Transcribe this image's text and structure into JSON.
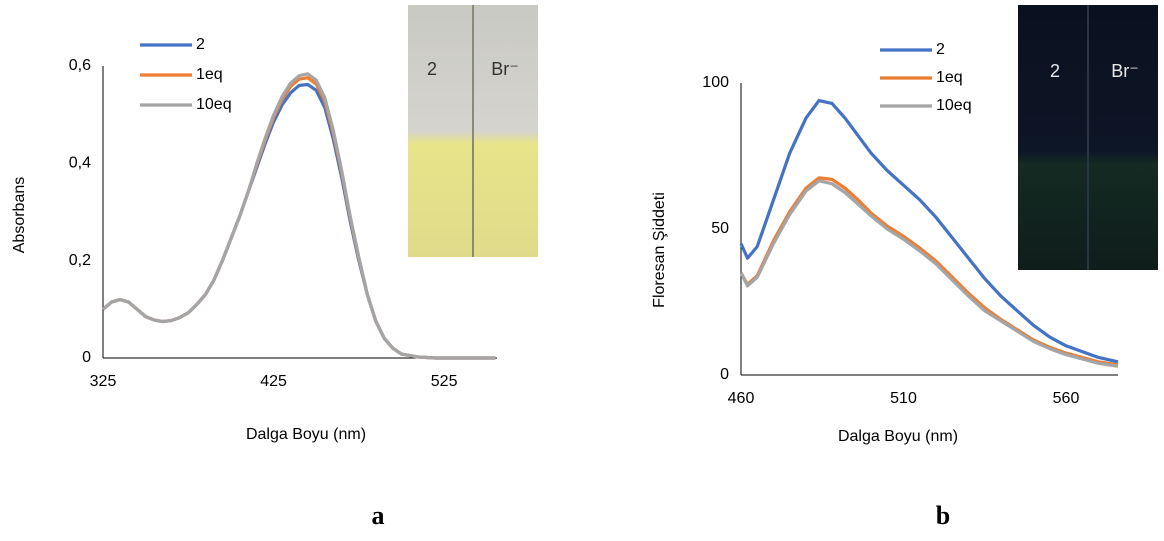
{
  "chart_data": [
    {
      "type": "line",
      "panel_label": "a",
      "x_label": "Dalga Boyu (nm)",
      "y_label": "Absorbans",
      "inset_labels": [
        "2",
        "Br⁻"
      ],
      "xlim": [
        325,
        556
      ],
      "xticks": [
        325,
        425,
        525
      ],
      "ylim": [
        0,
        0.6
      ],
      "yticks": [
        {
          "value": 0,
          "label": "0"
        },
        {
          "value": 0.2,
          "label": "0,2"
        },
        {
          "value": 0.4,
          "label": "0,4"
        },
        {
          "value": 0.6,
          "label": "0,6"
        }
      ],
      "grid": false,
      "x": [
        325,
        330,
        335,
        340,
        345,
        350,
        355,
        360,
        365,
        370,
        375,
        380,
        385,
        390,
        395,
        400,
        405,
        410,
        415,
        420,
        425,
        430,
        435,
        440,
        445,
        450,
        455,
        460,
        465,
        470,
        475,
        480,
        485,
        490,
        495,
        500,
        510,
        520,
        530,
        540,
        555
      ],
      "series": [
        {
          "name": "2",
          "color": "#4472c4",
          "values": [
            0.1,
            0.115,
            0.12,
            0.115,
            0.1,
            0.085,
            0.078,
            0.075,
            0.077,
            0.083,
            0.093,
            0.11,
            0.13,
            0.16,
            0.2,
            0.245,
            0.29,
            0.34,
            0.39,
            0.44,
            0.485,
            0.52,
            0.545,
            0.56,
            0.562,
            0.55,
            0.515,
            0.45,
            0.37,
            0.28,
            0.2,
            0.13,
            0.075,
            0.04,
            0.02,
            0.008,
            0.002,
            0,
            0,
            0,
            0
          ]
        },
        {
          "name": "1eq",
          "color": "#ed7d31",
          "values": [
            0.1,
            0.115,
            0.12,
            0.115,
            0.1,
            0.085,
            0.078,
            0.075,
            0.077,
            0.083,
            0.093,
            0.11,
            0.13,
            0.16,
            0.2,
            0.245,
            0.29,
            0.34,
            0.395,
            0.447,
            0.494,
            0.531,
            0.558,
            0.573,
            0.576,
            0.563,
            0.528,
            0.462,
            0.38,
            0.287,
            0.205,
            0.13,
            0.075,
            0.04,
            0.02,
            0.008,
            0.002,
            0,
            0,
            0,
            0
          ]
        },
        {
          "name": "10eq",
          "color": "#a5a5a5",
          "values": [
            0.1,
            0.115,
            0.12,
            0.115,
            0.1,
            0.085,
            0.078,
            0.075,
            0.077,
            0.083,
            0.093,
            0.11,
            0.13,
            0.16,
            0.2,
            0.245,
            0.29,
            0.34,
            0.398,
            0.451,
            0.499,
            0.537,
            0.565,
            0.58,
            0.584,
            0.571,
            0.535,
            0.468,
            0.384,
            0.29,
            0.207,
            0.13,
            0.075,
            0.04,
            0.02,
            0.008,
            0.002,
            0,
            0,
            0,
            0
          ]
        }
      ]
    },
    {
      "type": "line",
      "panel_label": "b",
      "x_label": "Dalga Boyu (nm)",
      "y_label": "Floresan Şiddeti",
      "inset_labels": [
        "2",
        "Br⁻"
      ],
      "xlim": [
        460,
        576
      ],
      "xticks": [
        460,
        510,
        560
      ],
      "ylim": [
        0,
        100
      ],
      "yticks": [
        0,
        50,
        100
      ],
      "grid": false,
      "x": [
        460,
        462,
        465,
        470,
        475,
        480,
        484,
        488,
        492,
        496,
        500,
        505,
        510,
        515,
        520,
        525,
        530,
        535,
        540,
        545,
        550,
        555,
        560,
        565,
        570,
        576
      ],
      "series": [
        {
          "name": "2",
          "color": "#4472c4",
          "values": [
            45,
            40,
            44,
            60,
            76,
            88,
            94,
            93,
            88,
            82,
            76,
            70,
            65,
            60,
            54,
            47,
            40,
            33,
            27,
            22,
            17,
            13,
            10,
            8,
            6,
            4.5
          ]
        },
        {
          "name": "1eq",
          "color": "#ed7d31",
          "values": [
            35,
            31,
            34,
            46,
            56,
            64,
            67.5,
            67,
            64,
            60,
            55.5,
            51,
            47.5,
            43.5,
            39,
            33.5,
            28,
            23,
            19,
            15.5,
            12,
            9.5,
            7.5,
            6,
            4.5,
            3.5
          ]
        },
        {
          "name": "10eq",
          "color": "#a5a5a5",
          "values": [
            35,
            30.5,
            33.5,
            45,
            55,
            63,
            66.5,
            65.5,
            62.5,
            58.5,
            54.5,
            50,
            46.5,
            42.5,
            38,
            32.5,
            27,
            22,
            18.5,
            15,
            11.5,
            9,
            7,
            5.5,
            4,
            3
          ]
        }
      ]
    }
  ]
}
